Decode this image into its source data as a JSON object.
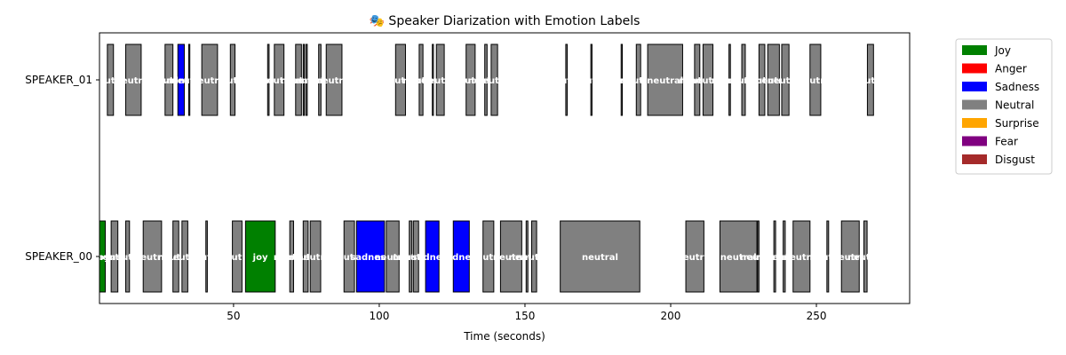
{
  "chart_data": {
    "type": "timeline",
    "title": "🎭 Speaker Diarization with Emotion Labels",
    "xlabel": "Time (seconds)",
    "ylabel": "",
    "xlim": [
      4,
      282
    ],
    "xticks": [
      50,
      100,
      150,
      200,
      250
    ],
    "speakers": [
      "SPEAKER_00",
      "SPEAKER_01"
    ],
    "legend_position": "outside-upper-right",
    "emotions": [
      {
        "name": "Joy",
        "color": "#008000"
      },
      {
        "name": "Anger",
        "color": "#ff0000"
      },
      {
        "name": "Sadness",
        "color": "#0000ff"
      },
      {
        "name": "Neutral",
        "color": "#808080"
      },
      {
        "name": "Surprise",
        "color": "#ffa500"
      },
      {
        "name": "Fear",
        "color": "#800080"
      },
      {
        "name": "Disgust",
        "color": "#a52a2a"
      }
    ],
    "segments": [
      {
        "speaker": "SPEAKER_01",
        "start": 6.7,
        "end": 8.8,
        "emotion": "Neutral",
        "label": "neutral"
      },
      {
        "speaker": "SPEAKER_01",
        "start": 13.0,
        "end": 18.3,
        "emotion": "Neutral",
        "label": "neutral"
      },
      {
        "speaker": "SPEAKER_01",
        "start": 26.5,
        "end": 29.2,
        "emotion": "Neutral",
        "label": "neutral"
      },
      {
        "speaker": "SPEAKER_01",
        "start": 30.9,
        "end": 33.1,
        "emotion": "Sadness",
        "label": "sadness"
      },
      {
        "speaker": "SPEAKER_01",
        "start": 34.6,
        "end": 35.0,
        "emotion": "Neutral",
        "label": "neutral"
      },
      {
        "speaker": "SPEAKER_01",
        "start": 39.1,
        "end": 44.5,
        "emotion": "Neutral",
        "label": "neutral"
      },
      {
        "speaker": "SPEAKER_01",
        "start": 48.9,
        "end": 50.5,
        "emotion": "Neutral",
        "label": "neutral"
      },
      {
        "speaker": "SPEAKER_01",
        "start": 61.7,
        "end": 62.2,
        "emotion": "Neutral",
        "label": "neutral"
      },
      {
        "speaker": "SPEAKER_01",
        "start": 64.0,
        "end": 67.3,
        "emotion": "Neutral",
        "label": "neutral"
      },
      {
        "speaker": "SPEAKER_01",
        "start": 71.3,
        "end": 73.3,
        "emotion": "Neutral",
        "label": "neutral"
      },
      {
        "speaker": "SPEAKER_01",
        "start": 73.9,
        "end": 74.3,
        "emotion": "Neutral",
        "label": "neutral"
      },
      {
        "speaker": "SPEAKER_01",
        "start": 74.8,
        "end": 75.3,
        "emotion": "Neutral",
        "label": "neutral"
      },
      {
        "speaker": "SPEAKER_01",
        "start": 79.2,
        "end": 80.0,
        "emotion": "Neutral",
        "label": "neutral"
      },
      {
        "speaker": "SPEAKER_01",
        "start": 81.8,
        "end": 87.2,
        "emotion": "Neutral",
        "label": "neutral"
      },
      {
        "speaker": "SPEAKER_01",
        "start": 105.6,
        "end": 109.0,
        "emotion": "Neutral",
        "label": "neutral"
      },
      {
        "speaker": "SPEAKER_01",
        "start": 113.7,
        "end": 115.0,
        "emotion": "Neutral",
        "label": "neutral"
      },
      {
        "speaker": "SPEAKER_01",
        "start": 118.2,
        "end": 118.6,
        "emotion": "Neutral",
        "label": "neutral"
      },
      {
        "speaker": "SPEAKER_01",
        "start": 119.6,
        "end": 122.3,
        "emotion": "Neutral",
        "label": "neutral"
      },
      {
        "speaker": "SPEAKER_01",
        "start": 129.8,
        "end": 132.9,
        "emotion": "Neutral",
        "label": "neutral"
      },
      {
        "speaker": "SPEAKER_01",
        "start": 136.2,
        "end": 137.0,
        "emotion": "Neutral",
        "label": "neutral"
      },
      {
        "speaker": "SPEAKER_01",
        "start": 138.4,
        "end": 140.6,
        "emotion": "Neutral",
        "label": "neutral"
      },
      {
        "speaker": "SPEAKER_01",
        "start": 164.0,
        "end": 164.5,
        "emotion": "Neutral",
        "label": "neutral"
      },
      {
        "speaker": "SPEAKER_01",
        "start": 172.6,
        "end": 173.0,
        "emotion": "Neutral",
        "label": "neutral"
      },
      {
        "speaker": "SPEAKER_01",
        "start": 183.0,
        "end": 183.4,
        "emotion": "Neutral",
        "label": "neutral"
      },
      {
        "speaker": "SPEAKER_01",
        "start": 188.2,
        "end": 189.7,
        "emotion": "Neutral",
        "label": "neutral"
      },
      {
        "speaker": "SPEAKER_01",
        "start": 192.1,
        "end": 204.1,
        "emotion": "Neutral",
        "label": "neutral"
      },
      {
        "speaker": "SPEAKER_01",
        "start": 208.2,
        "end": 210.0,
        "emotion": "Neutral",
        "label": "neutral"
      },
      {
        "speaker": "SPEAKER_01",
        "start": 211.1,
        "end": 214.5,
        "emotion": "Neutral",
        "label": "neutral"
      },
      {
        "speaker": "SPEAKER_01",
        "start": 220.0,
        "end": 220.5,
        "emotion": "Neutral",
        "label": "neutral"
      },
      {
        "speaker": "SPEAKER_01",
        "start": 224.4,
        "end": 225.6,
        "emotion": "Neutral",
        "label": "neutral"
      },
      {
        "speaker": "SPEAKER_01",
        "start": 230.3,
        "end": 232.3,
        "emotion": "Neutral",
        "label": "neutral"
      },
      {
        "speaker": "SPEAKER_01",
        "start": 233.3,
        "end": 237.3,
        "emotion": "Neutral",
        "label": "neutral"
      },
      {
        "speaker": "SPEAKER_01",
        "start": 238.1,
        "end": 240.6,
        "emotion": "Neutral",
        "label": "neutral"
      },
      {
        "speaker": "SPEAKER_01",
        "start": 247.8,
        "end": 251.5,
        "emotion": "Neutral",
        "label": "neutral"
      },
      {
        "speaker": "SPEAKER_01",
        "start": 267.5,
        "end": 269.6,
        "emotion": "Neutral",
        "label": "neutral"
      },
      {
        "speaker": "SPEAKER_00",
        "start": 4.0,
        "end": 6.0,
        "emotion": "Joy",
        "label": "joy"
      },
      {
        "speaker": "SPEAKER_00",
        "start": 8.0,
        "end": 10.3,
        "emotion": "Neutral",
        "label": "neutral"
      },
      {
        "speaker": "SPEAKER_00",
        "start": 13.0,
        "end": 14.3,
        "emotion": "Neutral",
        "label": "neutral"
      },
      {
        "speaker": "SPEAKER_00",
        "start": 19.0,
        "end": 25.3,
        "emotion": "Neutral",
        "label": "neutral"
      },
      {
        "speaker": "SPEAKER_00",
        "start": 29.2,
        "end": 31.2,
        "emotion": "Neutral",
        "label": "neutral"
      },
      {
        "speaker": "SPEAKER_00",
        "start": 32.3,
        "end": 34.3,
        "emotion": "Neutral",
        "label": "neutral"
      },
      {
        "speaker": "SPEAKER_00",
        "start": 40.5,
        "end": 41.0,
        "emotion": "Neutral",
        "label": "neutral"
      },
      {
        "speaker": "SPEAKER_00",
        "start": 49.6,
        "end": 52.9,
        "emotion": "Neutral",
        "label": "neutral"
      },
      {
        "speaker": "SPEAKER_00",
        "start": 54.1,
        "end": 64.3,
        "emotion": "Joy",
        "label": "joy"
      },
      {
        "speaker": "SPEAKER_00",
        "start": 69.3,
        "end": 70.6,
        "emotion": "Neutral",
        "label": "neutral"
      },
      {
        "speaker": "SPEAKER_00",
        "start": 73.9,
        "end": 75.6,
        "emotion": "Neutral",
        "label": "neutral"
      },
      {
        "speaker": "SPEAKER_00",
        "start": 76.3,
        "end": 79.9,
        "emotion": "Neutral",
        "label": "neutral"
      },
      {
        "speaker": "SPEAKER_00",
        "start": 87.9,
        "end": 91.5,
        "emotion": "Neutral",
        "label": "neutral"
      },
      {
        "speaker": "SPEAKER_00",
        "start": 92.2,
        "end": 101.8,
        "emotion": "Sadness",
        "label": "sadness"
      },
      {
        "speaker": "SPEAKER_00",
        "start": 102.4,
        "end": 106.8,
        "emotion": "Neutral",
        "label": "neutral"
      },
      {
        "speaker": "SPEAKER_00",
        "start": 110.3,
        "end": 111.2,
        "emotion": "Neutral",
        "label": "neutral"
      },
      {
        "speaker": "SPEAKER_00",
        "start": 111.7,
        "end": 113.5,
        "emotion": "Neutral",
        "label": "neutral"
      },
      {
        "speaker": "SPEAKER_00",
        "start": 115.9,
        "end": 120.5,
        "emotion": "Sadness",
        "label": "sadness"
      },
      {
        "speaker": "SPEAKER_00",
        "start": 125.4,
        "end": 130.9,
        "emotion": "Sadness",
        "label": "sadness"
      },
      {
        "speaker": "SPEAKER_00",
        "start": 135.6,
        "end": 139.3,
        "emotion": "Neutral",
        "label": "neutral"
      },
      {
        "speaker": "SPEAKER_00",
        "start": 141.6,
        "end": 148.9,
        "emotion": "Neutral",
        "label": "neutral"
      },
      {
        "speaker": "SPEAKER_00",
        "start": 150.4,
        "end": 151.0,
        "emotion": "Neutral",
        "label": "neutral"
      },
      {
        "speaker": "SPEAKER_00",
        "start": 152.3,
        "end": 154.0,
        "emotion": "Neutral",
        "label": "neutral"
      },
      {
        "speaker": "SPEAKER_00",
        "start": 162.1,
        "end": 189.4,
        "emotion": "Neutral",
        "label": "neutral"
      },
      {
        "speaker": "SPEAKER_00",
        "start": 205.2,
        "end": 211.4,
        "emotion": "Neutral",
        "label": "neutral"
      },
      {
        "speaker": "SPEAKER_00",
        "start": 216.9,
        "end": 229.6,
        "emotion": "Neutral",
        "label": "neutral"
      },
      {
        "speaker": "SPEAKER_00",
        "start": 229.8,
        "end": 230.3,
        "emotion": "Neutral",
        "label": "neutral"
      },
      {
        "speaker": "SPEAKER_00",
        "start": 235.4,
        "end": 236.0,
        "emotion": "Neutral",
        "label": "neutral"
      },
      {
        "speaker": "SPEAKER_00",
        "start": 238.6,
        "end": 239.3,
        "emotion": "Neutral",
        "label": "neutral"
      },
      {
        "speaker": "SPEAKER_00",
        "start": 242.0,
        "end": 247.8,
        "emotion": "Neutral",
        "label": "neutral"
      },
      {
        "speaker": "SPEAKER_00",
        "start": 253.6,
        "end": 254.2,
        "emotion": "Neutral",
        "label": "neutral"
      },
      {
        "speaker": "SPEAKER_00",
        "start": 258.6,
        "end": 264.7,
        "emotion": "Neutral",
        "label": "neutral"
      },
      {
        "speaker": "SPEAKER_00",
        "start": 266.3,
        "end": 267.4,
        "emotion": "Neutral",
        "label": "neutral"
      }
    ]
  }
}
